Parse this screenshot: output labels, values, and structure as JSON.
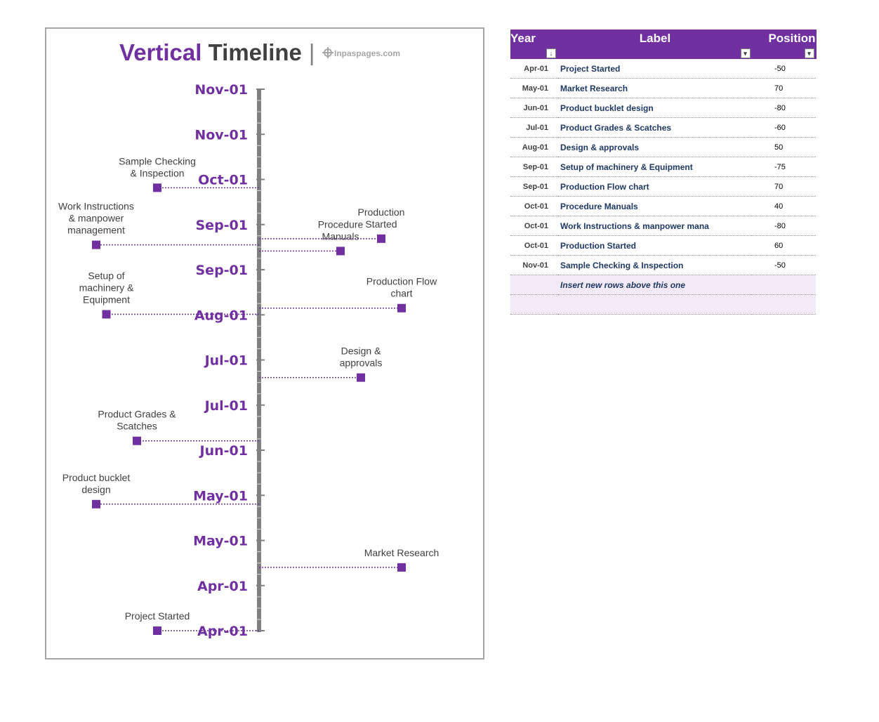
{
  "title": {
    "word1": "Vertical",
    "word2": "Timeline",
    "separator": "|",
    "brand": "Inpaspages.com"
  },
  "colors": {
    "accent": "#7030a0",
    "axis": "#808080",
    "text": "#404040",
    "table_text": "#1f3864",
    "insert_row": "#f2eaf8"
  },
  "chart_data": {
    "type": "timeline",
    "orientation": "vertical",
    "axis_tick_labels": [
      "Apr-01",
      "Apr-01",
      "May-01",
      "May-01",
      "Jun-01",
      "Jul-01",
      "Jul-01",
      "Aug-01",
      "Sep-01",
      "Sep-01",
      "Oct-01",
      "Nov-01",
      "Nov-01"
    ],
    "minor_ticks_per_interval": 4,
    "events": [
      {
        "date": "Apr-01",
        "label": "Project Started",
        "lines": [
          "Project Started"
        ],
        "position": -50
      },
      {
        "date": "May-01",
        "label": "Market Research",
        "lines": [
          "Market Research"
        ],
        "position": 70
      },
      {
        "date": "Jun-01",
        "label": "Product bucklet design",
        "lines": [
          "Product bucklet",
          "design"
        ],
        "position": -80
      },
      {
        "date": "Jul-01",
        "label": "Product Grades & Scatches",
        "lines": [
          "Product Grades &",
          "Scatches"
        ],
        "position": -60
      },
      {
        "date": "Aug-01",
        "label": "Design & approvals",
        "lines": [
          "Design &",
          "approvals"
        ],
        "position": 50
      },
      {
        "date": "Sep-01",
        "label": "Setup of machinery & Equipment",
        "lines": [
          "Setup of",
          "machinery &",
          "Equipment"
        ],
        "position": -75
      },
      {
        "date": "Sep-01",
        "label": "Production Flow chart",
        "lines": [
          "Production Flow",
          "chart"
        ],
        "position": 70
      },
      {
        "date": "Oct-01",
        "label": "Procedure Manuals",
        "lines": [
          "Procedure",
          "Manuals"
        ],
        "position": 40
      },
      {
        "date": "Oct-01",
        "label": "Work Instructions & manpower management",
        "lines": [
          "Work Instructions",
          "& manpower",
          "management"
        ],
        "position": -80
      },
      {
        "date": "Oct-01",
        "label": "Production Started",
        "lines": [
          "Production",
          "Started"
        ],
        "position": 60
      },
      {
        "date": "Nov-01",
        "label": "Sample Checking & Inspection",
        "lines": [
          "Sample Checking",
          "& Inspection"
        ],
        "position": -50
      }
    ]
  },
  "table": {
    "headers": {
      "year": "Year",
      "label": "Label",
      "position": "Position"
    },
    "rows": [
      {
        "year": "Apr-01",
        "label": "Project Started",
        "position": "-50"
      },
      {
        "year": "May-01",
        "label": "Market Research",
        "position": "70"
      },
      {
        "year": "Jun-01",
        "label": "Product bucklet design",
        "position": "-80"
      },
      {
        "year": "Jul-01",
        "label": "Product Grades & Scatches",
        "position": "-60"
      },
      {
        "year": "Aug-01",
        "label": "Design & approvals",
        "position": "50"
      },
      {
        "year": "Sep-01",
        "label": "Setup of machinery & Equipment",
        "position": "-75"
      },
      {
        "year": "Sep-01",
        "label": "Production Flow chart",
        "position": "70"
      },
      {
        "year": "Oct-01",
        "label": "Procedure Manuals",
        "position": "40"
      },
      {
        "year": "Oct-01",
        "label": "Work Instructions & manpower mana",
        "position": "-80"
      },
      {
        "year": "Oct-01",
        "label": "Production Started",
        "position": "60"
      },
      {
        "year": "Nov-01",
        "label": "Sample Checking & Inspection",
        "position": "-50"
      }
    ],
    "insert_note": "Insert new rows above this one"
  }
}
